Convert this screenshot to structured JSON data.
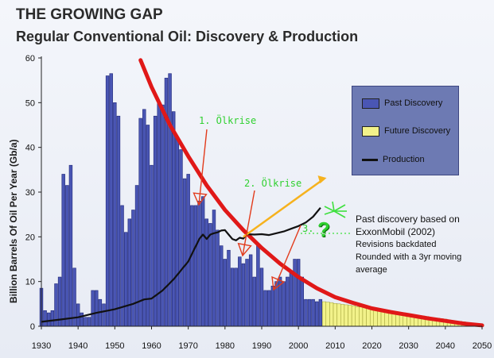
{
  "header": {
    "title": "THE GROWING GAP",
    "subtitle": "Regular Conventional Oil: Discovery & Production"
  },
  "legend": {
    "past": "Past Discovery",
    "future": "Future Discovery",
    "production": "Production"
  },
  "note": {
    "line1": "Past discovery based on",
    "line2": "ExxonMobil (2002)",
    "line3": "Revisions backdated",
    "line4": "Rounded with a 3yr moving",
    "line5": "average"
  },
  "annotations": {
    "crisis1": "1. Ölkrise",
    "crisis2": "2. Ölkrise",
    "crisis3": "3.",
    "question": "?"
  },
  "colors": {
    "bar": "#4a56b4",
    "future": "#f2f28a",
    "production": "#111111",
    "decline": "#e01818",
    "trend": "#f6b21e",
    "annotation": "#2fd02f",
    "arrow": "#e23b1c"
  },
  "chart_data": {
    "type": "bar",
    "title": "Regular Conventional Oil: Discovery & Production",
    "xlabel": "",
    "ylabel": "Billion Barrels Of Oil Per Year (Gb/a)",
    "xlim": [
      1930,
      2050
    ],
    "ylim": [
      0,
      60
    ],
    "xticks": [
      1930,
      1940,
      1950,
      1960,
      1970,
      1980,
      1990,
      2000,
      2010,
      2020,
      2030,
      2040,
      2050
    ],
    "yticks": [
      0,
      10,
      20,
      30,
      40,
      50,
      60
    ],
    "past_discovery": {
      "years": [
        1930,
        1931,
        1932,
        1933,
        1934,
        1935,
        1936,
        1937,
        1938,
        1939,
        1940,
        1941,
        1942,
        1943,
        1944,
        1945,
        1946,
        1947,
        1948,
        1949,
        1950,
        1951,
        1952,
        1953,
        1954,
        1955,
        1956,
        1957,
        1958,
        1959,
        1960,
        1961,
        1962,
        1963,
        1964,
        1965,
        1966,
        1967,
        1968,
        1969,
        1970,
        1971,
        1972,
        1973,
        1974,
        1975,
        1976,
        1977,
        1978,
        1979,
        1980,
        1981,
        1982,
        1983,
        1984,
        1985,
        1986,
        1987,
        1988,
        1989,
        1990,
        1991,
        1992,
        1993,
        1994,
        1995,
        1996,
        1997,
        1998,
        1999,
        2000,
        2001,
        2002,
        2003,
        2004,
        2005,
        2006
      ],
      "values": [
        8.5,
        3.5,
        3,
        3.5,
        9.5,
        11,
        34,
        31.5,
        36,
        13,
        5,
        3,
        2,
        2,
        8,
        8,
        6,
        5,
        56,
        56.5,
        50,
        47,
        27,
        21,
        24,
        26,
        31.5,
        46.5,
        48.5,
        45,
        36,
        47,
        50,
        49.5,
        55.5,
        56.5,
        48,
        42,
        39.5,
        33,
        34,
        27,
        27,
        28,
        29,
        24,
        23,
        26,
        21.5,
        18,
        15,
        17,
        13,
        13,
        15.5,
        14,
        15,
        16,
        11,
        18,
        13,
        8,
        8,
        9,
        10,
        11,
        10,
        11,
        12,
        15,
        15,
        11,
        6,
        6,
        6,
        5.5,
        6
      ]
    },
    "future_discovery": {
      "years": [
        2007,
        2008,
        2009,
        2010,
        2011,
        2012,
        2013,
        2014,
        2015,
        2016,
        2017,
        2018,
        2019,
        2020,
        2021,
        2022,
        2023,
        2024,
        2025,
        2026,
        2027,
        2028,
        2029,
        2030,
        2031,
        2032,
        2033,
        2034,
        2035,
        2036,
        2037,
        2038,
        2039,
        2040,
        2041,
        2042,
        2043,
        2044,
        2045,
        2046,
        2047,
        2048,
        2049,
        2050
      ],
      "values": [
        5.5,
        5.4,
        5.3,
        5.1,
        5,
        4.9,
        4.8,
        4.7,
        4.6,
        4.4,
        4.3,
        4.2,
        4.1,
        4,
        3.8,
        3.7,
        3.6,
        3.5,
        3.4,
        3.2,
        3.1,
        3,
        2.9,
        2.8,
        2.6,
        2.5,
        2.4,
        2.3,
        2.2,
        2,
        1.9,
        1.8,
        1.7,
        1.6,
        1.4,
        1.3,
        1.2,
        1.1,
        1,
        0.8,
        0.7,
        0.6,
        0.5,
        0.4
      ]
    },
    "production": {
      "x": [
        1930,
        1935,
        1940,
        1945,
        1950,
        1955,
        1958,
        1960,
        1963,
        1966,
        1970,
        1973,
        1974,
        1975,
        1976,
        1977,
        1978,
        1979,
        1980,
        1981,
        1982,
        1983,
        1984,
        1985,
        1986,
        1988,
        1990,
        1992,
        1994,
        1996,
        1998,
        2000,
        2002,
        2004,
        2006
      ],
      "y": [
        1,
        1.5,
        2,
        3,
        3.8,
        5,
        6,
        6.2,
        8,
        10.5,
        14.5,
        19.5,
        20.5,
        19.5,
        20.5,
        20.8,
        21,
        21.4,
        21.5,
        20.5,
        19.5,
        19.2,
        19.8,
        19.6,
        20.6,
        20.5,
        20.6,
        20.4,
        20.8,
        21.2,
        21.8,
        22.4,
        23.2,
        24.5,
        26.5
      ]
    },
    "decline_trend": {
      "x": [
        1957,
        1960,
        1965,
        1970,
        1975,
        1980,
        1985,
        1990,
        1995,
        2000,
        2005,
        2010,
        2015,
        2020,
        2025,
        2030,
        2035,
        2040,
        2045,
        2050
      ],
      "y": [
        59.5,
        53.5,
        45,
        38,
        31.5,
        26,
        21.5,
        17.5,
        14,
        11,
        8.5,
        6.5,
        5.2,
        4,
        3.2,
        2.5,
        1.8,
        1.2,
        0.6,
        0.2
      ]
    },
    "trend_line": {
      "x": [
        1985,
        2007
      ],
      "y": [
        20,
        33
      ]
    },
    "legend_position": "right"
  }
}
